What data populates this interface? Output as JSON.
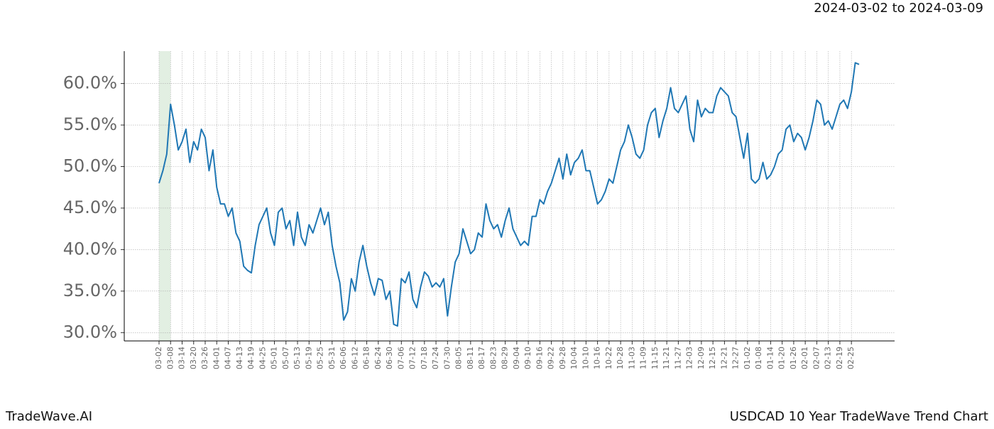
{
  "chart_data": {
    "type": "line",
    "title": "USDCAD 10 Year TradeWave Trend Chart",
    "subtitle": "2024-03-02 to 2024-03-09",
    "brand": "TradeWave.AI",
    "color": "#1f77b4",
    "highlight": {
      "from": "03-02",
      "to": "03-08",
      "color": "#e2efe2"
    },
    "grid": true,
    "ylim": [
      29,
      63.9
    ],
    "yticks": [
      {
        "value": 30,
        "label": "30.0%"
      },
      {
        "value": 35,
        "label": "35.0%"
      },
      {
        "value": 40,
        "label": "40.0%"
      },
      {
        "value": 45,
        "label": "45.0%"
      },
      {
        "value": 50,
        "label": "50.0%"
      },
      {
        "value": 55,
        "label": "55.0%"
      },
      {
        "value": 60,
        "label": "60.0%"
      }
    ],
    "categories": [
      "03-02",
      null,
      null,
      "03-08",
      null,
      null,
      "03-14",
      null,
      null,
      "03-20",
      null,
      null,
      "03-26",
      null,
      null,
      "04-01",
      null,
      null,
      "04-07",
      null,
      null,
      "04-13",
      null,
      null,
      "04-19",
      null,
      null,
      "04-25",
      null,
      null,
      "05-01",
      null,
      null,
      "05-07",
      null,
      null,
      "05-13",
      null,
      null,
      "05-19",
      null,
      null,
      "05-25",
      null,
      null,
      "05-31",
      null,
      null,
      "06-06",
      null,
      null,
      "06-12",
      null,
      null,
      "06-18",
      null,
      null,
      "06-24",
      null,
      null,
      "06-30",
      null,
      null,
      "07-06",
      null,
      null,
      "07-12",
      null,
      null,
      "07-18",
      null,
      null,
      "07-24",
      null,
      null,
      "07-30",
      null,
      null,
      "08-05",
      null,
      null,
      "08-11",
      null,
      null,
      "08-17",
      null,
      null,
      "08-23",
      null,
      null,
      "08-29",
      null,
      null,
      "09-04",
      null,
      null,
      "09-10",
      null,
      null,
      "09-16",
      null,
      null,
      "09-22",
      null,
      null,
      "09-28",
      null,
      null,
      "10-04",
      null,
      null,
      "10-10",
      null,
      null,
      "10-16",
      null,
      null,
      "10-22",
      null,
      null,
      "10-28",
      null,
      null,
      "11-03",
      null,
      null,
      "11-09",
      null,
      null,
      "11-15",
      null,
      null,
      "11-21",
      null,
      null,
      "11-27",
      null,
      null,
      "12-03",
      null,
      null,
      "12-09",
      null,
      null,
      "12-15",
      null,
      null,
      "12-21",
      null,
      null,
      "12-27",
      null,
      null,
      "01-02",
      null,
      null,
      "01-08",
      null,
      null,
      "01-14",
      null,
      null,
      "01-20",
      null,
      null,
      "01-26",
      null,
      null,
      "02-01",
      null,
      null,
      "02-07",
      null,
      null,
      "02-13",
      null,
      null,
      "02-19",
      null,
      null,
      "02-25",
      null,
      null
    ],
    "values": [
      48,
      49.5,
      51.5,
      57.5,
      55,
      52,
      53,
      54.5,
      50.5,
      53,
      52,
      54.5,
      53.5,
      49.5,
      52,
      47.5,
      45.5,
      45.5,
      44,
      45,
      42,
      41,
      38,
      37.5,
      37.2,
      40.5,
      43,
      44,
      45,
      42,
      40.5,
      44.5,
      45,
      42.5,
      43.5,
      40.5,
      44.5,
      41.5,
      40.5,
      43,
      42,
      43.5,
      45,
      43,
      44.5,
      40.5,
      38,
      36,
      31.5,
      32.5,
      36.5,
      35,
      38.5,
      40.5,
      38,
      36,
      34.5,
      36.5,
      36.3,
      34,
      35,
      31,
      30.8,
      36.5,
      36,
      37.3,
      34,
      33,
      35.5,
      37.3,
      36.8,
      35.5,
      36,
      35.5,
      36.5,
      32,
      35.5,
      38.5,
      39.5,
      42.5,
      41,
      39.5,
      40,
      42,
      41.5,
      45.5,
      43.5,
      42.5,
      43,
      41.5,
      43.5,
      45,
      42.5,
      41.5,
      40.5,
      41,
      40.5,
      44,
      44,
      46,
      45.5,
      47,
      48,
      49.5,
      51,
      48.5,
      51.5,
      49,
      50.5,
      51,
      52,
      49.5,
      49.5,
      47.5,
      45.5,
      46,
      47,
      48.5,
      48,
      50,
      52,
      53,
      55,
      53.5,
      51.5,
      51,
      52,
      55,
      56.5,
      57,
      53.5,
      55.5,
      57,
      59.5,
      57,
      56.5,
      57.5,
      58.5,
      54.5,
      53,
      58,
      56,
      57,
      56.5,
      56.5,
      58.5,
      59.5,
      59,
      58.5,
      56.5,
      56,
      53.5,
      51,
      54,
      48.5,
      48,
      48.5,
      50.5,
      48.5,
      49,
      50,
      51.5,
      52,
      54.5,
      55,
      53,
      54,
      53.5,
      52,
      53.5,
      55.5,
      58,
      57.5,
      55,
      55.5,
      54.5,
      56,
      57.5,
      58,
      57,
      59,
      62.5,
      62.3
    ]
  }
}
